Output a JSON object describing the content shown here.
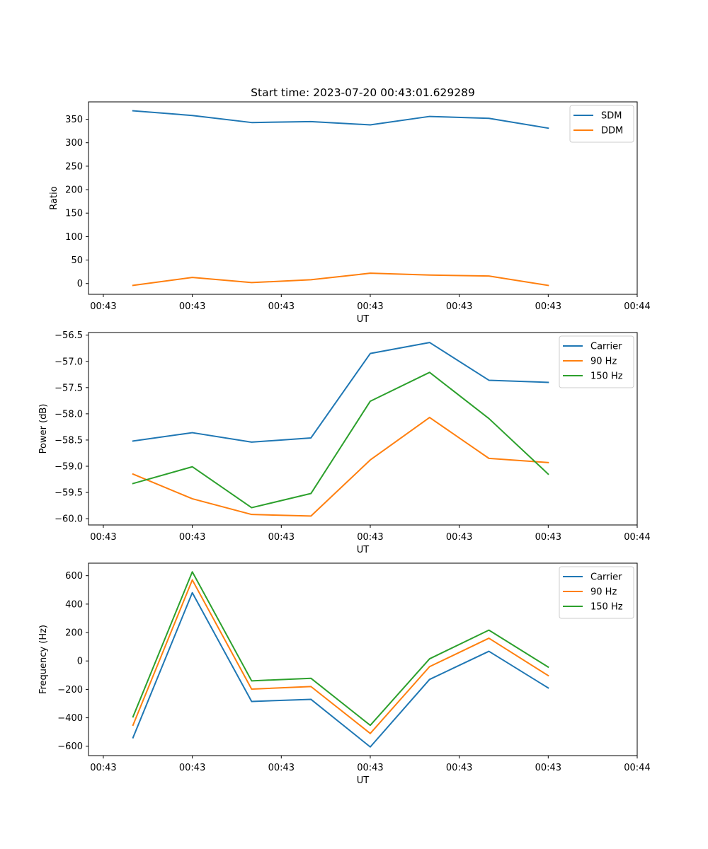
{
  "figure_title": "Start time: 2023-07-20 00:43:01.629289",
  "colors": {
    "blue": "#1f77b4",
    "orange": "#ff7f0e",
    "green": "#2ca02c"
  },
  "chart_data": [
    {
      "type": "line",
      "title": "Start time: 2023-07-20 00:43:01.629289",
      "xlabel": "UT",
      "ylabel": "Ratio",
      "x": [
        1,
        2,
        3,
        4,
        5,
        6,
        7,
        8
      ],
      "xlim": [
        0.25,
        9.5
      ],
      "ylim": [
        -23,
        387
      ],
      "xticks": [
        0.5,
        2,
        3.5,
        5,
        6.5,
        8,
        9.5
      ],
      "xtick_labels": [
        "00:43",
        "00:43",
        "00:43",
        "00:43",
        "00:43",
        "00:43",
        "00:44"
      ],
      "yticks": [
        0,
        50,
        100,
        150,
        200,
        250,
        300,
        350
      ],
      "ytick_labels": [
        "0",
        "50",
        "100",
        "150",
        "200",
        "250",
        "300",
        "350"
      ],
      "legend_position": "top-right",
      "series": [
        {
          "name": "SDM",
          "color": "#1f77b4",
          "values": [
            368,
            358,
            343,
            345,
            338,
            356,
            352,
            331
          ]
        },
        {
          "name": "DDM",
          "color": "#ff7f0e",
          "values": [
            -4,
            13,
            2,
            8,
            22,
            18,
            16,
            -4
          ]
        }
      ]
    },
    {
      "type": "line",
      "title": "",
      "xlabel": "UT",
      "ylabel": "Power (dB)",
      "x": [
        1,
        2,
        3,
        4,
        5,
        6,
        7,
        8
      ],
      "xlim": [
        0.25,
        9.5
      ],
      "ylim": [
        -60.12,
        -56.45
      ],
      "xticks": [
        0.5,
        2,
        3.5,
        5,
        6.5,
        8,
        9.5
      ],
      "xtick_labels": [
        "00:43",
        "00:43",
        "00:43",
        "00:43",
        "00:43",
        "00:43",
        "00:44"
      ],
      "yticks": [
        -60.0,
        -59.5,
        -59.0,
        -58.5,
        -58.0,
        -57.5,
        -57.0,
        -56.5
      ],
      "ytick_labels": [
        "−60.0",
        "−59.5",
        "−59.0",
        "−58.5",
        "−58.0",
        "−57.5",
        "−57.0",
        "−56.5"
      ],
      "legend_position": "top-right",
      "series": [
        {
          "name": "Carrier",
          "color": "#1f77b4",
          "values": [
            -58.52,
            -58.36,
            -58.54,
            -58.46,
            -56.85,
            -56.64,
            -57.36,
            -57.4
          ]
        },
        {
          "name": "90 Hz",
          "color": "#ff7f0e",
          "values": [
            -59.15,
            -59.62,
            -59.92,
            -59.95,
            -58.88,
            -58.07,
            -58.85,
            -58.93
          ]
        },
        {
          "name": "150 Hz",
          "color": "#2ca02c",
          "values": [
            -59.33,
            -59.01,
            -59.79,
            -59.52,
            -57.76,
            -57.21,
            -58.09,
            -59.15
          ]
        }
      ]
    },
    {
      "type": "line",
      "title": "",
      "xlabel": "UT",
      "ylabel": "Frequency (Hz)",
      "x": [
        1,
        2,
        3,
        4,
        5,
        6,
        7,
        8
      ],
      "xlim": [
        0.25,
        9.5
      ],
      "ylim": [
        -666,
        688
      ],
      "xticks": [
        0.5,
        2,
        3.5,
        5,
        6.5,
        8,
        9.5
      ],
      "xtick_labels": [
        "00:43",
        "00:43",
        "00:43",
        "00:43",
        "00:43",
        "00:43",
        "00:44"
      ],
      "yticks": [
        -600,
        -400,
        -200,
        0,
        200,
        400,
        600
      ],
      "ytick_labels": [
        "−600",
        "−400",
        "−200",
        "0",
        "200",
        "400",
        "600"
      ],
      "legend_position": "top-right",
      "series": [
        {
          "name": "Carrier",
          "color": "#1f77b4",
          "values": [
            -540,
            480,
            -285,
            -270,
            -605,
            -130,
            68,
            -190
          ]
        },
        {
          "name": "90 Hz",
          "color": "#ff7f0e",
          "values": [
            -452,
            570,
            -198,
            -180,
            -510,
            -40,
            160,
            -103
          ]
        },
        {
          "name": "150 Hz",
          "color": "#2ca02c",
          "values": [
            -393,
            627,
            -140,
            -122,
            -453,
            15,
            217,
            -43
          ]
        }
      ]
    }
  ]
}
